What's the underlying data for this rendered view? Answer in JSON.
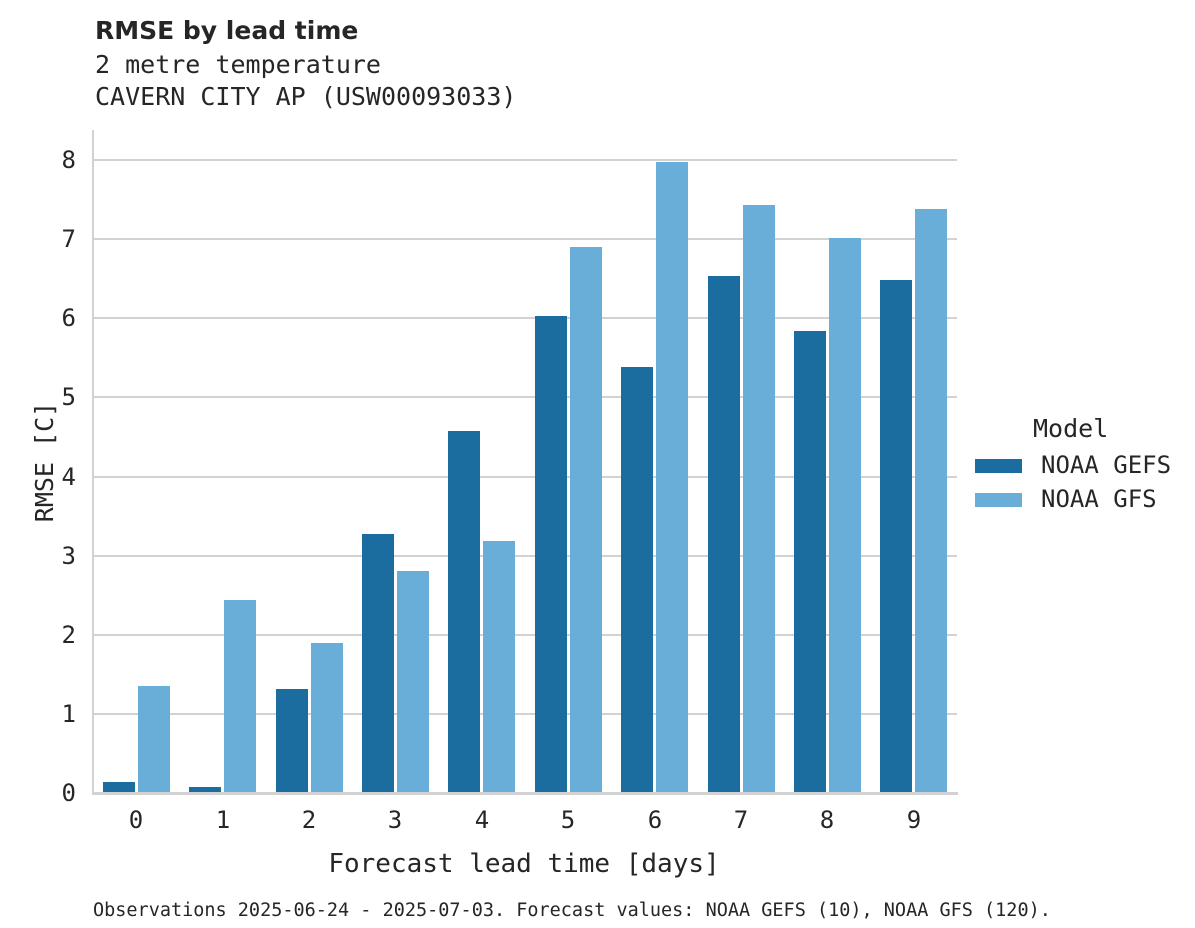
{
  "header": {
    "title": "RMSE by lead time",
    "subtitle1": "2 metre temperature",
    "subtitle2": "CAVERN CITY AP (USW00093033)"
  },
  "chart_data": {
    "type": "bar",
    "title": "RMSE by lead time",
    "subtitle": [
      "2 metre temperature",
      "CAVERN CITY AP (USW00093033)"
    ],
    "categories": [
      "0",
      "1",
      "2",
      "3",
      "4",
      "5",
      "6",
      "7",
      "8",
      "9"
    ],
    "series": [
      {
        "name": "NOAA GEFS",
        "color": "#1a6d9e",
        "values": [
          0.14,
          0.08,
          1.31,
          3.27,
          4.58,
          6.03,
          5.38,
          6.53,
          5.84,
          6.48
        ]
      },
      {
        "name": "NOAA GFS",
        "color": "#69aed8",
        "values": [
          1.35,
          2.44,
          1.9,
          2.81,
          3.19,
          6.9,
          7.97,
          7.43,
          7.01,
          7.38
        ]
      }
    ],
    "xlabel": "Forecast lead time [days]",
    "ylabel": "RMSE [C]",
    "ylim": [
      0,
      8.38
    ],
    "yticks": [
      0,
      1,
      2,
      3,
      4,
      5,
      6,
      7,
      8
    ],
    "grid": true,
    "legend_title": "Model",
    "legend_position": "right",
    "gridline_color": "#d2d2d2",
    "text_color": "#262626"
  },
  "footer": {
    "note": "Observations 2025-06-24 - 2025-07-03. Forecast values: NOAA GEFS (10), NOAA GFS (120)."
  }
}
